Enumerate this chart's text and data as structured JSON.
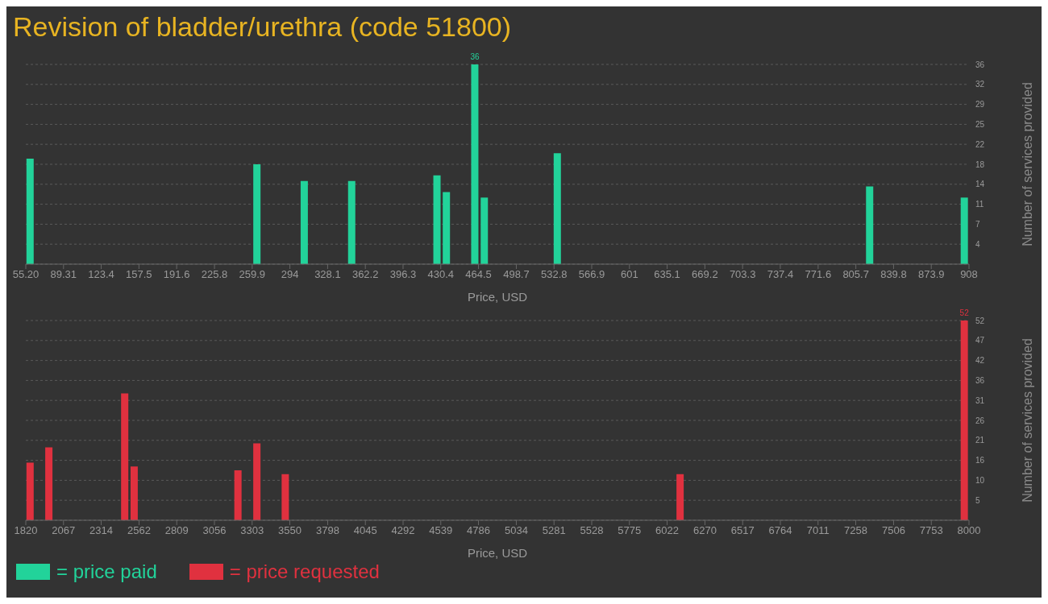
{
  "chart_data": [
    {
      "type": "bar",
      "title": "Revision of bladder/urethra (code 51800)",
      "xlabel": "Price, USD",
      "ylabel": "Number of services provided",
      "x": [
        59.3,
        264.4,
        307.2,
        350.1,
        427.2,
        435.7,
        461.4,
        470,
        536,
        818.4,
        904
      ],
      "series": [
        {
          "name": "= price paid",
          "color": "#22d39a",
          "values": [
            19,
            18,
            15,
            15,
            16,
            13,
            36,
            12,
            20,
            14,
            12
          ],
          "value_labels": [
            null,
            null,
            null,
            null,
            null,
            null,
            "36",
            null,
            null,
            null,
            null
          ]
        }
      ],
      "xlim": [
        55.2,
        908
      ],
      "xticks": [
        {
          "value": 55.2,
          "label": "55.20"
        },
        89.31,
        123.4,
        157.5,
        191.6,
        225.8,
        259.9,
        294,
        328.1,
        362.2,
        396.3,
        430.4,
        464.5,
        498.7,
        532.8,
        566.9,
        601,
        635.1,
        669.2,
        703.3,
        737.4,
        771.6,
        805.7,
        839.8,
        873.9,
        908
      ],
      "ylim": [
        0,
        36
      ],
      "yticks": [
        {
          "value": 3.6,
          "label": "4"
        },
        {
          "value": 7.2,
          "label": "7"
        },
        {
          "value": 10.8,
          "label": "11"
        },
        {
          "value": 14.4,
          "label": "14"
        },
        18,
        {
          "value": 21.6,
          "label": "22"
        },
        {
          "value": 25.2,
          "label": "25"
        },
        {
          "value": 28.8,
          "label": "29"
        },
        {
          "value": 32.4,
          "label": "32"
        },
        36
      ],
      "grid": "y",
      "legend": "bottom left"
    },
    {
      "type": "bar",
      "xlabel": "Price, USD",
      "ylabel": "Number of services provided",
      "x": [
        1850,
        1973,
        2470,
        2532,
        3212,
        3336,
        3522,
        6109,
        7971
      ],
      "series": [
        {
          "name": "= price requested",
          "color": "#e0313f",
          "values": [
            15,
            19,
            33,
            14,
            13,
            20,
            12,
            12,
            52
          ],
          "value_labels": [
            null,
            null,
            null,
            null,
            null,
            null,
            null,
            null,
            "52"
          ]
        }
      ],
      "xlim": [
        1820,
        8000
      ],
      "xticks": [
        1820,
        2067,
        2314,
        2562,
        2809,
        3056,
        3303,
        3550,
        3798,
        4045,
        4292,
        4539,
        4786,
        5034,
        5281,
        5528,
        5775,
        6022,
        6270,
        6517,
        6764,
        7011,
        7258,
        7506,
        7753,
        8000
      ],
      "ylim": [
        0,
        52
      ],
      "yticks": [
        {
          "value": 5.2,
          "label": "5"
        },
        {
          "value": 10.4,
          "label": "10"
        },
        {
          "value": 15.6,
          "label": "16"
        },
        {
          "value": 20.8,
          "label": "21"
        },
        26,
        {
          "value": 31.2,
          "label": "31"
        },
        {
          "value": 36.4,
          "label": "36"
        },
        {
          "value": 41.6,
          "label": "42"
        },
        {
          "value": 46.8,
          "label": "47"
        },
        52
      ],
      "grid": "y",
      "legend": "bottom left"
    }
  ]
}
